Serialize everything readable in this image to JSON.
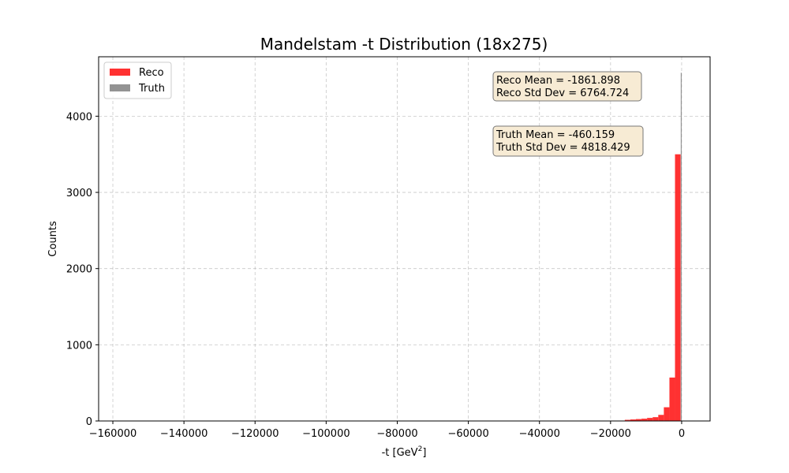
{
  "chart_data": {
    "type": "bar",
    "title": "Mandelstam -t Distribution (18x275)",
    "xlabel": "-t [GeV",
    "xlabel_superscript": "2",
    "xlabel_suffix": "]",
    "ylabel": "Counts",
    "xlim": [
      -164000,
      8000
    ],
    "ylim": [
      0,
      4780
    ],
    "xticks": [
      -160000,
      -140000,
      -120000,
      -100000,
      -80000,
      -60000,
      -40000,
      -20000,
      0
    ],
    "xtick_labels": [
      "−160000",
      "−140000",
      "−120000",
      "−100000",
      "−80000",
      "−60000",
      "−40000",
      "−20000",
      "0"
    ],
    "yticks": [
      0,
      1000,
      2000,
      3000,
      4000
    ],
    "ytick_labels": [
      "0",
      "1000",
      "2000",
      "3000",
      "4000"
    ],
    "grid": true,
    "legend_position": "top-left",
    "series": [
      {
        "name": "Reco",
        "color": "#ff2020",
        "opacity": 0.92,
        "bin_edges": [
          -16000,
          -14430,
          -12860,
          -11290,
          -9720,
          -8150,
          -6580,
          -5010,
          -3440,
          -1870,
          -300
        ],
        "counts": [
          15,
          20,
          25,
          30,
          40,
          50,
          80,
          180,
          570,
          3500
        ],
        "extra_bins": [
          {
            "x0": -76000,
            "x1": -75300,
            "count": 5
          }
        ]
      },
      {
        "name": "Truth",
        "color": "#808080",
        "opacity": 0.85,
        "bin_edges": [
          -250,
          0
        ],
        "counts": [
          4570
        ]
      }
    ],
    "annotations": [
      {
        "lines": [
          "Reco Mean = -1861.898",
          "Reco Std Dev = 6764.724"
        ]
      },
      {
        "lines": [
          "Truth Mean = -460.159",
          "Truth Std Dev = 4818.429"
        ]
      }
    ]
  }
}
